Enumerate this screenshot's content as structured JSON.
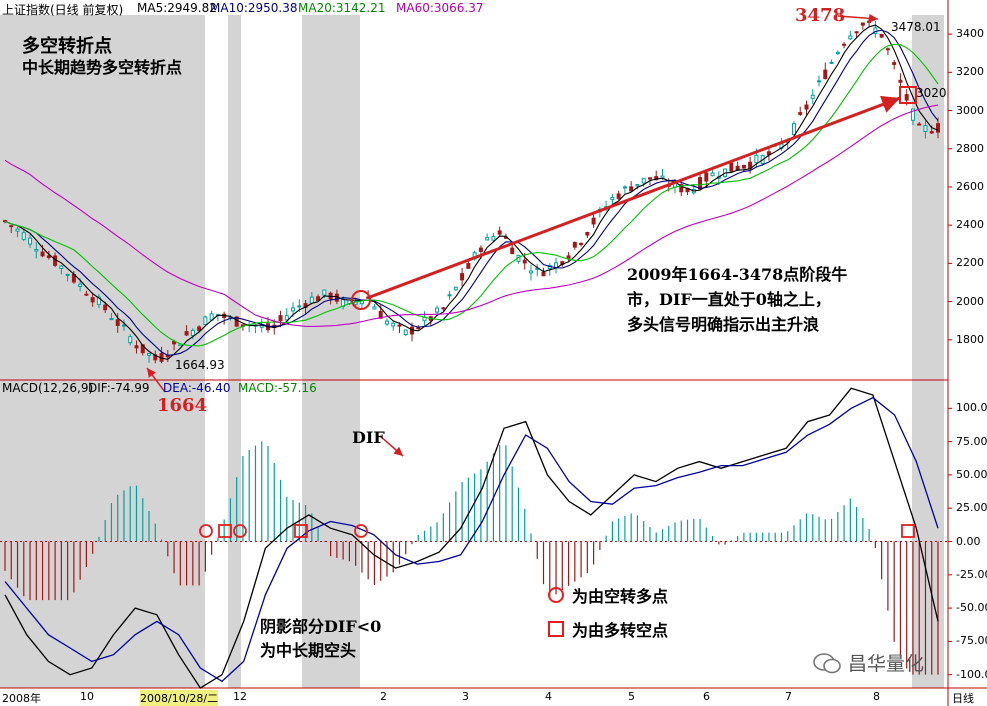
{
  "header": {
    "title": "上证指数(日线 前复权)",
    "ma5": "MA5:2949.82",
    "ma10": "MA10:2950.38",
    "ma20": "MA20:3142.21",
    "ma60": "MA60:3066.37",
    "arrow_down": "↓",
    "arrow_up": "↑"
  },
  "annotations": {
    "title1": "多空转折点",
    "title2": "中长期趋势多空转折点",
    "peak": "3478",
    "peak_label": "3478.01",
    "low": "1664",
    "low_label": "1664.93",
    "last_label": "3020",
    "note1": "2009年1664-3478点阶段牛",
    "note2": "市，DIF一直处于0轴之上，",
    "note3": "多头信号明确指示出主升浪",
    "dif_tag": "DIF",
    "shade1": "阴影部分DIF<0",
    "shade2": "为中长期空头",
    "legend_circle": "为由空转多点",
    "legend_square": "为由多转空点",
    "watermark": "昌华量化"
  },
  "macd_header": {
    "name": "MACD(12,26,9)",
    "dif": "DIF:-74.99",
    "dea": "DEA:-46.40",
    "macd": "MACD:-57.16"
  },
  "axes": {
    "price_ticks": [
      "3400",
      "3200",
      "3000",
      "2800",
      "2600",
      "2400",
      "2200",
      "2000",
      "1800"
    ],
    "macd_ticks": [
      "100.00",
      "75.00",
      "50.00",
      "25.00",
      "0.00",
      "-25.00",
      "-50.00",
      "-75.00",
      "-100.0"
    ],
    "x_labels": [
      "2008年",
      "10",
      "2008/10/28/二",
      "12",
      "2",
      "3",
      "4",
      "5",
      "6",
      "7",
      "8",
      "日线"
    ]
  },
  "colors": {
    "up": "#00a0a0",
    "down": "#a01818",
    "ma5": "#000000",
    "ma10": "#000080",
    "ma20": "#00c000",
    "ma60": "#c000c0",
    "shade": "#d4d4d4",
    "arrow": "#d42020",
    "dif": "#000000",
    "dea": "#0000a0"
  },
  "chart_data": {
    "type": "line",
    "price": {
      "ylim": [
        1600,
        3500
      ],
      "close": [
        2420,
        2350,
        2260,
        2180,
        2080,
        1990,
        1880,
        1764,
        1690,
        1780,
        1860,
        1940,
        1900,
        1880,
        1850,
        1950,
        2010,
        2040,
        1980,
        2030,
        1900,
        1830,
        1890,
        1960,
        2120,
        2290,
        2370,
        2230,
        2150,
        2200,
        2290,
        2430,
        2550,
        2610,
        2650,
        2610,
        2580,
        2660,
        2690,
        2720,
        2760,
        2830,
        3000,
        3180,
        3360,
        3460,
        3410,
        3150,
        2900,
        2910
      ]
    },
    "macd": {
      "ylim": [
        -110,
        110
      ],
      "dif": [
        -40,
        -70,
        -90,
        -100,
        -95,
        -70,
        -50,
        -55,
        -85,
        -110,
        -100,
        -60,
        -5,
        10,
        20,
        10,
        5,
        -10,
        -20,
        -15,
        -8,
        10,
        40,
        85,
        90,
        50,
        30,
        20,
        35,
        50,
        45,
        55,
        60,
        55,
        60,
        65,
        70,
        90,
        95,
        115,
        110,
        60,
        10,
        -60
      ],
      "dea": [
        -30,
        -50,
        -70,
        -80,
        -90,
        -85,
        -70,
        -60,
        -70,
        -95,
        -105,
        -90,
        -40,
        -5,
        8,
        15,
        12,
        5,
        -10,
        -17,
        -15,
        -10,
        15,
        50,
        80,
        70,
        45,
        30,
        28,
        40,
        42,
        48,
        52,
        57,
        57,
        62,
        67,
        80,
        88,
        100,
        108,
        95,
        60,
        10
      ],
      "hist_labels": []
    }
  }
}
